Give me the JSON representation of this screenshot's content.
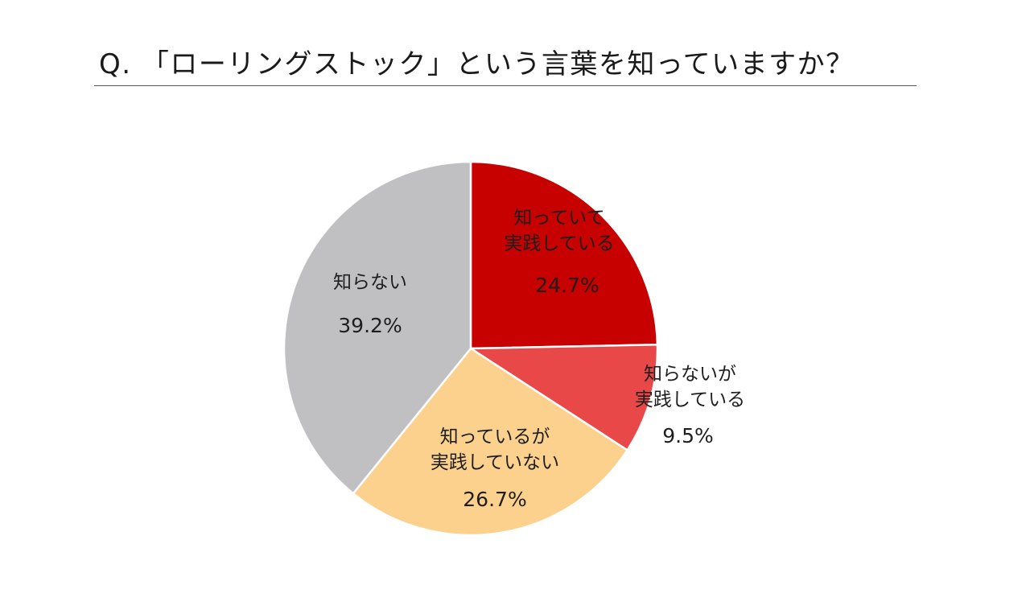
{
  "chart_data": {
    "type": "pie",
    "title": "Q. 「ローリングストック」という言葉を知っていますか？",
    "start_angle": "12 o'clock",
    "direction": "clockwise",
    "legend": "none (labels inside slices)",
    "slices": [
      {
        "label_line1": "知っていて",
        "label_line2": "実践している",
        "value": 24.7,
        "value_label": "24.7%",
        "color": "#c70000"
      },
      {
        "label_line1": "知らないが",
        "label_line2": "実践している",
        "value": 9.5,
        "value_label": "9.5%",
        "color": "#e84848"
      },
      {
        "label_line1": "知っているが",
        "label_line2": "実践していない",
        "value": 26.7,
        "value_label": "26.7%",
        "color": "#fcd18e"
      },
      {
        "label_line1": "知らない",
        "label_line2": "",
        "value": 39.2,
        "value_label": "39.2%",
        "color": "#c0c0c2"
      }
    ]
  }
}
